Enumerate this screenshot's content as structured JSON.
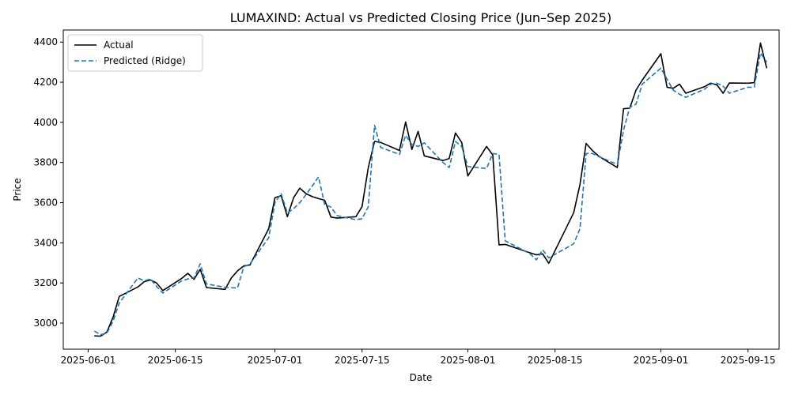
{
  "chart_data": {
    "type": "line",
    "title": "LUMAXIND: Actual vs Predicted Closing Price (Jun–Sep 2025)",
    "xlabel": "Date",
    "ylabel": "Price",
    "xlim": [
      "2025-05-28",
      "2025-09-20"
    ],
    "ylim": [
      2870,
      4460
    ],
    "x_ticks": [
      "2025-06-01",
      "2025-06-15",
      "2025-07-01",
      "2025-07-15",
      "2025-08-01",
      "2025-08-15",
      "2025-09-01",
      "2025-09-15"
    ],
    "y_ticks": [
      3000,
      3200,
      3400,
      3600,
      3800,
      4000,
      4200,
      4400
    ],
    "grid": false,
    "legend_position": "upper-left",
    "series": [
      {
        "name": "Actual",
        "color": "#000000",
        "style": "solid",
        "points": [
          [
            "2025-06-02",
            2936
          ],
          [
            "2025-06-03",
            2935
          ],
          [
            "2025-06-04",
            2955
          ],
          [
            "2025-06-05",
            3030
          ],
          [
            "2025-06-06",
            3133
          ],
          [
            "2025-06-09",
            3180
          ],
          [
            "2025-06-10",
            3206
          ],
          [
            "2025-06-11",
            3215
          ],
          [
            "2025-06-12",
            3200
          ],
          [
            "2025-06-13",
            3162
          ],
          [
            "2025-06-16",
            3222
          ],
          [
            "2025-06-17",
            3248
          ],
          [
            "2025-06-18",
            3218
          ],
          [
            "2025-06-19",
            3268
          ],
          [
            "2025-06-20",
            3177
          ],
          [
            "2025-06-23",
            3168
          ],
          [
            "2025-06-24",
            3225
          ],
          [
            "2025-06-25",
            3260
          ],
          [
            "2025-06-26",
            3285
          ],
          [
            "2025-06-27",
            3290
          ],
          [
            "2025-06-30",
            3470
          ],
          [
            "2025-07-01",
            3625
          ],
          [
            "2025-07-02",
            3635
          ],
          [
            "2025-07-03",
            3530
          ],
          [
            "2025-07-04",
            3625
          ],
          [
            "2025-07-05",
            3672
          ],
          [
            "2025-07-06",
            3645
          ],
          [
            "2025-07-07",
            3630
          ],
          [
            "2025-07-08",
            3620
          ],
          [
            "2025-07-09",
            3612
          ],
          [
            "2025-07-10",
            3528
          ],
          [
            "2025-07-11",
            3523
          ],
          [
            "2025-07-14",
            3530
          ],
          [
            "2025-07-15",
            3580
          ],
          [
            "2025-07-16",
            3775
          ],
          [
            "2025-07-17",
            3905
          ],
          [
            "2025-07-18",
            3900
          ],
          [
            "2025-07-21",
            3860
          ],
          [
            "2025-07-22",
            4002
          ],
          [
            "2025-07-23",
            3865
          ],
          [
            "2025-07-24",
            3955
          ],
          [
            "2025-07-25",
            3833
          ],
          [
            "2025-07-28",
            3810
          ],
          [
            "2025-07-29",
            3820
          ],
          [
            "2025-07-30",
            3947
          ],
          [
            "2025-07-31",
            3900
          ],
          [
            "2025-08-01",
            3733
          ],
          [
            "2025-08-04",
            3880
          ],
          [
            "2025-08-05",
            3837
          ],
          [
            "2025-08-06",
            3390
          ],
          [
            "2025-08-07",
            3392
          ],
          [
            "2025-08-11",
            3350
          ],
          [
            "2025-08-12",
            3340
          ],
          [
            "2025-08-13",
            3345
          ],
          [
            "2025-08-14",
            3298
          ],
          [
            "2025-08-18",
            3550
          ],
          [
            "2025-08-19",
            3690
          ],
          [
            "2025-08-20",
            3895
          ],
          [
            "2025-08-21",
            3860
          ],
          [
            "2025-08-22",
            3832
          ],
          [
            "2025-08-25",
            3775
          ],
          [
            "2025-08-26",
            4068
          ],
          [
            "2025-08-27",
            4070
          ],
          [
            "2025-08-28",
            4160
          ],
          [
            "2025-08-29",
            4210
          ],
          [
            "2025-09-01",
            4342
          ],
          [
            "2025-09-02",
            4175
          ],
          [
            "2025-09-03",
            4170
          ],
          [
            "2025-09-04",
            4190
          ],
          [
            "2025-09-05",
            4145
          ],
          [
            "2025-09-08",
            4178
          ],
          [
            "2025-09-09",
            4195
          ],
          [
            "2025-09-10",
            4187
          ],
          [
            "2025-09-11",
            4145
          ],
          [
            "2025-09-12",
            4196
          ],
          [
            "2025-09-15",
            4195
          ],
          [
            "2025-09-16",
            4198
          ],
          [
            "2025-09-17",
            4395
          ],
          [
            "2025-09-18",
            4270
          ]
        ]
      },
      {
        "name": "Predicted (Ridge)",
        "color": "#1f77b4",
        "style": "dashed",
        "points": [
          [
            "2025-06-02",
            2960
          ],
          [
            "2025-06-03",
            2942
          ],
          [
            "2025-06-04",
            2950
          ],
          [
            "2025-06-05",
            3010
          ],
          [
            "2025-06-06",
            3100
          ],
          [
            "2025-06-09",
            3225
          ],
          [
            "2025-06-10",
            3210
          ],
          [
            "2025-06-11",
            3220
          ],
          [
            "2025-06-12",
            3182
          ],
          [
            "2025-06-13",
            3150
          ],
          [
            "2025-06-16",
            3210
          ],
          [
            "2025-06-17",
            3220
          ],
          [
            "2025-06-18",
            3225
          ],
          [
            "2025-06-19",
            3295
          ],
          [
            "2025-06-20",
            3195
          ],
          [
            "2025-06-23",
            3178
          ],
          [
            "2025-06-24",
            3176
          ],
          [
            "2025-06-25",
            3175
          ],
          [
            "2025-06-26",
            3280
          ],
          [
            "2025-06-27",
            3295
          ],
          [
            "2025-06-30",
            3425
          ],
          [
            "2025-07-01",
            3600
          ],
          [
            "2025-07-02",
            3645
          ],
          [
            "2025-07-03",
            3548
          ],
          [
            "2025-07-04",
            3570
          ],
          [
            "2025-07-05",
            3600
          ],
          [
            "2025-07-06",
            3640
          ],
          [
            "2025-07-07",
            3683
          ],
          [
            "2025-07-08",
            3728
          ],
          [
            "2025-07-09",
            3590
          ],
          [
            "2025-07-10",
            3578
          ],
          [
            "2025-07-11",
            3535
          ],
          [
            "2025-07-14",
            3515
          ],
          [
            "2025-07-15",
            3520
          ],
          [
            "2025-07-16",
            3580
          ],
          [
            "2025-07-17",
            3985
          ],
          [
            "2025-07-18",
            3875
          ],
          [
            "2025-07-21",
            3840
          ],
          [
            "2025-07-22",
            3935
          ],
          [
            "2025-07-23",
            3890
          ],
          [
            "2025-07-24",
            3880
          ],
          [
            "2025-07-25",
            3898
          ],
          [
            "2025-07-28",
            3800
          ],
          [
            "2025-07-29",
            3775
          ],
          [
            "2025-07-30",
            3905
          ],
          [
            "2025-07-31",
            3880
          ],
          [
            "2025-08-01",
            3780
          ],
          [
            "2025-08-04",
            3770
          ],
          [
            "2025-08-05",
            3845
          ],
          [
            "2025-08-06",
            3840
          ],
          [
            "2025-08-07",
            3410
          ],
          [
            "2025-08-11",
            3345
          ],
          [
            "2025-08-12",
            3315
          ],
          [
            "2025-08-13",
            3365
          ],
          [
            "2025-08-14",
            3325
          ],
          [
            "2025-08-18",
            3395
          ],
          [
            "2025-08-19",
            3470
          ],
          [
            "2025-08-20",
            3845
          ],
          [
            "2025-08-21",
            3845
          ],
          [
            "2025-08-22",
            3830
          ],
          [
            "2025-08-25",
            3790
          ],
          [
            "2025-08-26",
            3960
          ],
          [
            "2025-08-27",
            4075
          ],
          [
            "2025-08-28",
            4090
          ],
          [
            "2025-08-29",
            4190
          ],
          [
            "2025-09-01",
            4270
          ],
          [
            "2025-09-02",
            4215
          ],
          [
            "2025-09-03",
            4160
          ],
          [
            "2025-09-04",
            4140
          ],
          [
            "2025-09-05",
            4125
          ],
          [
            "2025-09-08",
            4165
          ],
          [
            "2025-09-09",
            4190
          ],
          [
            "2025-09-10",
            4195
          ],
          [
            "2025-09-11",
            4180
          ],
          [
            "2025-09-12",
            4145
          ],
          [
            "2025-09-15",
            4175
          ],
          [
            "2025-09-16",
            4175
          ],
          [
            "2025-09-17",
            4345
          ],
          [
            "2025-09-18",
            4300
          ]
        ]
      }
    ]
  }
}
